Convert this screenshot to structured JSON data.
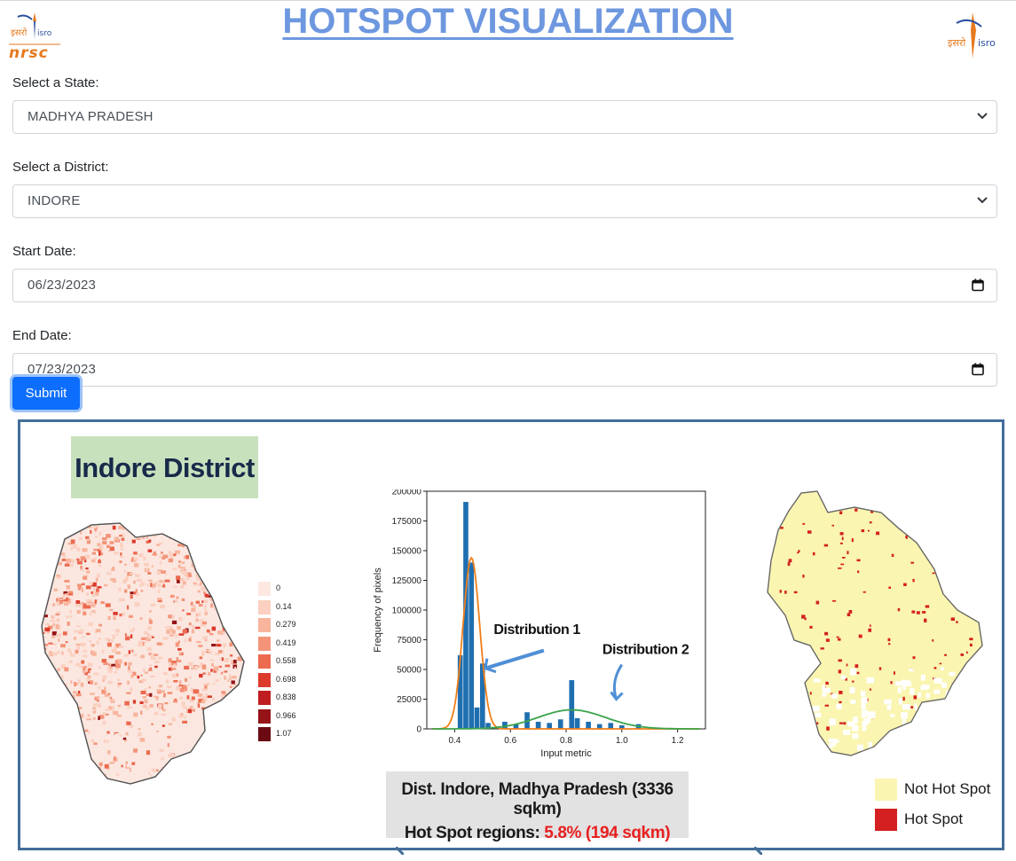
{
  "header": {
    "title": "HOTSPOT VISUALIZATION",
    "left_logo": {
      "icon": "nrsc-isro-logo",
      "text_top": "इसरो isro",
      "text_bottom": "nrsc"
    },
    "right_logo": {
      "icon": "isro-logo",
      "text": "इसरो isro"
    }
  },
  "form": {
    "state": {
      "label": "Select a State:",
      "value": "MADHYA PRADESH"
    },
    "district": {
      "label": "Select a District:",
      "value": "INDORE"
    },
    "start_date": {
      "label": "Start Date:",
      "value": "06/23/2023"
    },
    "end_date": {
      "label": "End Date:",
      "value": "07/23/2023"
    },
    "submit_label": "Submit"
  },
  "colors": {
    "title": "#6d97df",
    "submit": "#0d6efd",
    "frame": "#436d9a",
    "hot_spot": "#d42020",
    "not_hot_spot": "#faf5b0"
  },
  "figure": {
    "title": "Indore District",
    "scale_legend": [
      "0",
      "0.14",
      "0.279",
      "0.419",
      "0.558",
      "0.698",
      "0.838",
      "0.966",
      "1.07"
    ],
    "scale_colors": [
      "#fde8e1",
      "#fbd0c0",
      "#f8b49d",
      "#f39479",
      "#ec6a4f",
      "#dc3a2b",
      "#bf1d1f",
      "#961418",
      "#6b0a12"
    ],
    "chart_data": {
      "type": "bar",
      "xlabel": "Input metric",
      "ylabel": "Frequency of pixels",
      "xlim": [
        0.3,
        1.3
      ],
      "ylim": [
        0,
        200000
      ],
      "xticks": [
        "0.4",
        "0.6",
        "0.8",
        "1.0",
        "1.2"
      ],
      "yticks": [
        "0",
        "25000",
        "50000",
        "75000",
        "100000",
        "125000",
        "150000",
        "175000",
        "200000"
      ],
      "bins": [
        {
          "x": 0.42,
          "y": 62000
        },
        {
          "x": 0.44,
          "y": 191000
        },
        {
          "x": 0.46,
          "y": 140000
        },
        {
          "x": 0.48,
          "y": 18000
        },
        {
          "x": 0.5,
          "y": 55000
        },
        {
          "x": 0.52,
          "y": 5000
        },
        {
          "x": 0.58,
          "y": 6000
        },
        {
          "x": 0.62,
          "y": 4000
        },
        {
          "x": 0.66,
          "y": 14000
        },
        {
          "x": 0.7,
          "y": 6000
        },
        {
          "x": 0.74,
          "y": 5000
        },
        {
          "x": 0.78,
          "y": 8000
        },
        {
          "x": 0.82,
          "y": 41000
        },
        {
          "x": 0.84,
          "y": 9000
        },
        {
          "x": 0.88,
          "y": 6000
        },
        {
          "x": 0.92,
          "y": 4000
        },
        {
          "x": 0.96,
          "y": 5000
        },
        {
          "x": 1.0,
          "y": 3000
        },
        {
          "x": 1.06,
          "y": 4000
        }
      ],
      "series": [
        {
          "name": "Distribution 1",
          "mean": 0.46,
          "sd": 0.03,
          "peak": 144000,
          "color": "#f07f1a"
        },
        {
          "name": "Distribution 2",
          "mean": 0.82,
          "sd": 0.12,
          "peak": 16000,
          "color": "#3aa44a"
        }
      ],
      "bar_color": "#1f6fb0"
    },
    "info_line1": "Dist. Indore, Madhya Pradesh (3336 sqkm)",
    "info_line2_prefix": "Hot Spot regions: ",
    "info_line2_highlight": "5.8% (194 sqkm)",
    "legend": [
      {
        "label": "Not Hot Spot",
        "color": "#faf5b0"
      },
      {
        "label": "Hot Spot",
        "color": "#d42020"
      }
    ]
  }
}
